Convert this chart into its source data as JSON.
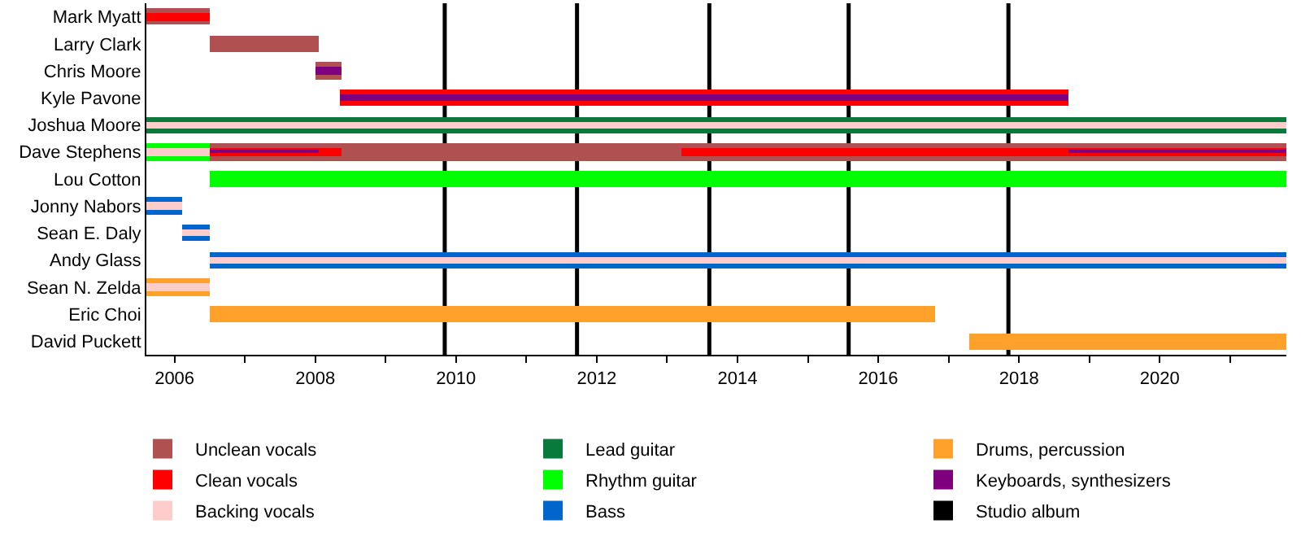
{
  "chart_data": {
    "type": "bar",
    "orientation": "horizontal",
    "categories": [
      "Mark Myatt",
      "Larry Clark",
      "Chris Moore",
      "Kyle Pavone",
      "Joshua Moore",
      "Dave Stephens",
      "Lou Cotton",
      "Jonny Nabors",
      "Sean E. Daly",
      "Andy Glass",
      "Sean N. Zelda",
      "Eric Choi",
      "David Puckett"
    ],
    "series": [
      {
        "name": "Unclean vocals",
        "color": "#b05050",
        "values": [
          0.9,
          1.54,
          0.38,
          null,
          null,
          15.3,
          null,
          null,
          null,
          null,
          null,
          null,
          null
        ],
        "base": [
          2005.6,
          2006.5,
          2008.0,
          null,
          null,
          2006.5,
          null,
          null,
          null,
          null,
          null,
          null,
          null
        ]
      },
      {
        "name": "Lead guitar",
        "color": "#087a3c",
        "values": [
          null,
          null,
          null,
          null,
          16.2,
          null,
          null,
          null,
          null,
          null,
          null,
          null,
          null
        ],
        "base": [
          null,
          null,
          null,
          null,
          2005.6,
          null,
          null,
          null,
          null,
          null,
          null,
          null,
          null
        ]
      },
      {
        "name": "Drums, percussion",
        "color": "#ffa12a",
        "values": [
          null,
          null,
          null,
          null,
          null,
          null,
          null,
          null,
          null,
          null,
          0.9,
          10.3,
          4.5
        ],
        "base": [
          null,
          null,
          null,
          null,
          null,
          null,
          null,
          null,
          null,
          null,
          2005.6,
          2006.5,
          2017.3
        ]
      },
      {
        "name": "Clean vocals",
        "color": "#ff0000",
        "values": [
          0.9,
          null,
          null,
          10.34,
          null,
          1.88,
          null,
          null,
          null,
          null,
          null,
          null,
          null
        ],
        "base": [
          2005.6,
          null,
          null,
          2008.36,
          null,
          2006.5,
          null,
          null,
          null,
          null,
          null,
          null,
          null
        ]
      },
      {
        "name": "Rhythm guitar",
        "color": "#00ff00",
        "values": [
          null,
          null,
          null,
          null,
          null,
          0.9,
          15.3,
          null,
          null,
          null,
          null,
          null,
          null
        ],
        "base": [
          null,
          null,
          null,
          null,
          null,
          2005.6,
          2006.5,
          null,
          null,
          null,
          null,
          null,
          null
        ]
      },
      {
        "name": "Keyboards, synthesizers",
        "color": "#7f007f",
        "values": [
          null,
          null,
          0.38,
          10.34,
          null,
          1.54,
          null,
          null,
          null,
          null,
          null,
          null,
          null
        ],
        "base": [
          null,
          null,
          2008.0,
          2008.36,
          null,
          2006.5,
          null,
          null,
          null,
          null,
          null,
          null,
          null
        ]
      },
      {
        "name": "Backing vocals",
        "color": "#ffcccc",
        "values": [
          null,
          null,
          null,
          null,
          16.2,
          0.9,
          null,
          null,
          null,
          null,
          null,
          null,
          null
        ],
        "base": [
          null,
          null,
          null,
          null,
          2005.6,
          2005.6,
          null,
          null,
          null,
          null,
          null,
          null,
          null
        ]
      },
      {
        "name": "Bass",
        "color": "#0066cc",
        "values": [
          null,
          null,
          null,
          null,
          null,
          null,
          null,
          0.5,
          0.4,
          15.3,
          null,
          null,
          null
        ],
        "base": [
          null,
          null,
          null,
          null,
          null,
          null,
          null,
          2005.6,
          2006.1,
          2006.5,
          null,
          null,
          null
        ]
      },
      {
        "color": "#ff0000",
        "values": [
          null,
          null,
          null,
          null,
          null,
          8.6,
          null,
          null,
          null,
          null,
          null,
          null,
          null
        ],
        "base": [
          null,
          null,
          null,
          null,
          null,
          2013.2,
          null,
          null,
          null,
          null,
          null,
          null,
          null
        ]
      },
      {
        "color": "#7f007f",
        "values": [
          null,
          null,
          null,
          null,
          null,
          3.1,
          null,
          null,
          null,
          null,
          null,
          null,
          null
        ],
        "base": [
          null,
          null,
          null,
          null,
          null,
          2018.7,
          null,
          null,
          null,
          null,
          null,
          null,
          null
        ]
      },
      {
        "color": "#ffcccc",
        "values": [
          null,
          null,
          null,
          null,
          null,
          null,
          null,
          0.5,
          0.4,
          15.3,
          0.9,
          null,
          null
        ],
        "base": [
          null,
          null,
          null,
          null,
          null,
          null,
          null,
          2005.6,
          2006.1,
          2006.5,
          2005.6,
          null,
          null
        ]
      }
    ],
    "xlim": [
      2005.6,
      2021.8
    ],
    "xticks": [
      2006,
      {
        "value": 2007,
        "label": null
      },
      2008,
      {
        "value": 2009,
        "label": null
      },
      2010,
      {
        "value": 2011,
        "label": null
      },
      2012,
      {
        "value": 2013,
        "label": null
      },
      2014,
      {
        "value": 2015,
        "label": null
      },
      2016,
      {
        "value": 2017,
        "label": null
      },
      2018,
      {
        "value": 2019,
        "label": null
      },
      2020,
      {
        "value": 2021,
        "label": null
      }
    ],
    "ref_lines": [
      {
        "axis": "x",
        "value": 2009.84,
        "label": "Studio album",
        "color": "#000000"
      },
      {
        "axis": "x",
        "value": 2011.72,
        "color": "#000000"
      },
      {
        "axis": "x",
        "value": 2013.6,
        "color": "#000000"
      },
      {
        "axis": "x",
        "value": 2015.58,
        "color": "#000000"
      },
      {
        "axis": "x",
        "value": 2017.85,
        "color": "#000000"
      }
    ],
    "grid": false,
    "legend": "bottom"
  }
}
